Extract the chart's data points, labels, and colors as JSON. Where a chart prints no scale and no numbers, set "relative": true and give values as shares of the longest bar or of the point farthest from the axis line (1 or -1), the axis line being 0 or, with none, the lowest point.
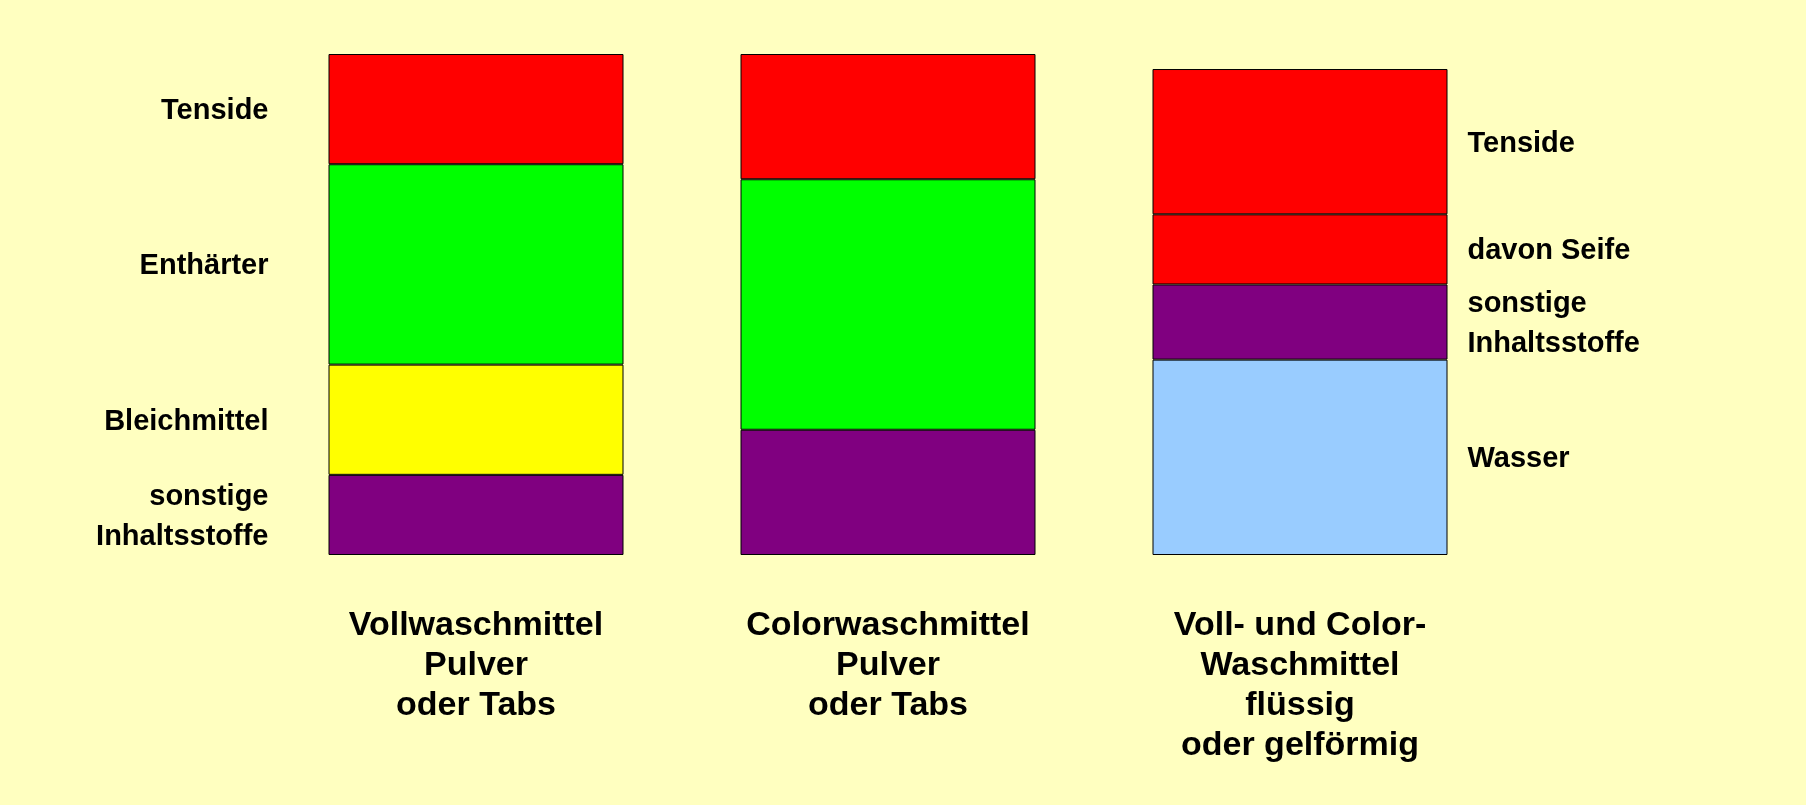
{
  "chart_data": {
    "type": "bar",
    "stacked": true,
    "relative": true,
    "legend": false,
    "categories": [
      "Vollwaschmittel\nPulver\noder Tabs",
      "Colorwaschmittel\nPulver\noder Tabs",
      "Voll- und Color-\nWaschmittel\nflüssig\noder gelförmig"
    ],
    "series": [
      {
        "name": "Wasser",
        "color": "#99ccff",
        "values": [
          null,
          null,
          0.39
        ]
      },
      {
        "name": "sonstige\nInhaltsstoffe",
        "color": "#800080",
        "values": [
          0.16,
          0.25,
          0.15
        ]
      },
      {
        "name": "Bleichmittel",
        "color": "#ffff00",
        "values": [
          0.22,
          null,
          null
        ]
      },
      {
        "name": "Enthärter",
        "color": "#00ff00",
        "values": [
          0.4,
          0.5,
          null
        ]
      },
      {
        "name": "davon Seife",
        "color": "#ff0000",
        "values": [
          null,
          null,
          0.14
        ]
      },
      {
        "name": "Tenside",
        "color": "#ff0000",
        "values": [
          0.22,
          0.25,
          0.29
        ]
      }
    ]
  }
}
